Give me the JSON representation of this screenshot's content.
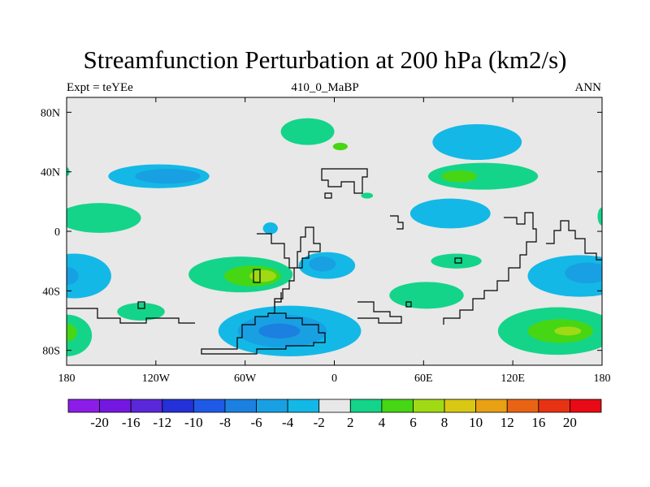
{
  "chart_data": {
    "type": "heatmap",
    "title": "Streamfunction Perturbation at 200 hPa (km2/s)",
    "left_string": "Expt = teYEe",
    "center_string": "410_0_MaBP",
    "right_string": "ANN",
    "x_ticks": [
      {
        "value": -180,
        "label": "180"
      },
      {
        "value": -120,
        "label": "120W"
      },
      {
        "value": -60,
        "label": "60W"
      },
      {
        "value": 0,
        "label": "0"
      },
      {
        "value": 60,
        "label": "60E"
      },
      {
        "value": 120,
        "label": "120E"
      },
      {
        "value": 180,
        "label": "180"
      }
    ],
    "y_ticks": [
      {
        "value": 80,
        "label": "80N"
      },
      {
        "value": 40,
        "label": "40N"
      },
      {
        "value": 0,
        "label": "0"
      },
      {
        "value": -40,
        "label": "40S"
      },
      {
        "value": -80,
        "label": "80S"
      }
    ],
    "xlim": [
      -180,
      180
    ],
    "ylim": [
      -90,
      90
    ],
    "colorbar": {
      "levels": [
        "-20",
        "-16",
        "-12",
        "-10",
        "-8",
        "-6",
        "-4",
        "-2",
        "2",
        "4",
        "6",
        "8",
        "10",
        "12",
        "16",
        "20"
      ],
      "colors": [
        "#8c1de8",
        "#7417e0",
        "#5a28d8",
        "#2430d8",
        "#1f5ae6",
        "#1c80e0",
        "#18a0e2",
        "#14b8e6",
        "#e8e8e8",
        "#14d48a",
        "#46d614",
        "#a0da14",
        "#d8c814",
        "#e8a014",
        "#e86414",
        "#e83214",
        "#e80a14"
      ]
    },
    "fields": [
      {
        "name": "north-pacific-blue",
        "lon": -118,
        "lat": 37,
        "rlon": 34,
        "rlat": 8,
        "value": -4
      },
      {
        "name": "north-pacific-blue-core",
        "lon": -112,
        "lat": 37,
        "rlon": 22,
        "rlat": 5,
        "value": -6
      },
      {
        "name": "north-atlantic-green",
        "lon": -18,
        "lat": 67,
        "rlon": 18,
        "rlat": 9,
        "value": 2
      },
      {
        "name": "north-atlantic-green-core",
        "lon": 4,
        "lat": 57,
        "rlon": 5,
        "rlat": 2.5,
        "value": 4
      },
      {
        "name": "east-asia-blue",
        "lon": 96,
        "lat": 60,
        "rlon": 30,
        "rlat": 12,
        "value": -4
      },
      {
        "name": "asia-green",
        "lon": 100,
        "lat": 37,
        "rlon": 37,
        "rlat": 9,
        "value": 2
      },
      {
        "name": "asia-green-core",
        "lon": 84,
        "lat": 37,
        "rlon": 12,
        "rlat": 4,
        "value": 4
      },
      {
        "name": "central-asia-green-small",
        "lon": 22,
        "lat": 24,
        "rlon": 4,
        "rlat": 2,
        "value": 2
      },
      {
        "name": "pacific-green-west",
        "lon": -158,
        "lat": 9,
        "rlon": 28,
        "rlat": 10,
        "value": 2
      },
      {
        "name": "india-blue",
        "lon": 78,
        "lat": 12,
        "rlon": 27,
        "rlat": 10,
        "value": -4
      },
      {
        "name": "atlantic-blue-small",
        "lon": -43,
        "lat": 2,
        "rlon": 5,
        "rlat": 4,
        "value": -4
      },
      {
        "name": "pacific-edge-green-east",
        "lon": 180,
        "lat": 10,
        "rlon": 3,
        "rlat": 6,
        "value": 2
      },
      {
        "name": "south-america-green",
        "lon": -63,
        "lat": -29,
        "rlon": 35,
        "rlat": 12,
        "value": 2
      },
      {
        "name": "south-america-green-core",
        "lon": -55,
        "lat": -30,
        "rlon": 19,
        "rlat": 7,
        "value": 4
      },
      {
        "name": "south-america-green-max",
        "lon": -48,
        "lat": -30,
        "rlon": 9,
        "rlat": 4,
        "value": 6
      },
      {
        "name": "south-atlantic-blue",
        "lon": -5,
        "lat": -23,
        "rlon": 19,
        "rlat": 9,
        "value": -4
      },
      {
        "name": "south-atlantic-blue-core",
        "lon": -8,
        "lat": -22,
        "rlon": 9,
        "rlat": 5,
        "value": -6
      },
      {
        "name": "indian-ocean-green",
        "lon": 82,
        "lat": -20,
        "rlon": 17,
        "rlat": 5,
        "value": 2
      },
      {
        "name": "south-indian-green",
        "lon": 62,
        "lat": -43,
        "rlon": 25,
        "rlat": 9,
        "value": 2
      },
      {
        "name": "australia-blue",
        "lon": 165,
        "lat": -30,
        "rlon": 35,
        "rlat": 14,
        "value": -4
      },
      {
        "name": "australia-blue-core",
        "lon": 170,
        "lat": -28,
        "rlon": 15,
        "rlat": 7,
        "value": -6
      },
      {
        "name": "west-pacific-blue",
        "lon": -175,
        "lat": -30,
        "rlon": 25,
        "rlat": 15,
        "value": -4
      },
      {
        "name": "west-pacific-blue-core",
        "lon": -180,
        "lat": -30,
        "rlon": 8,
        "rlat": 6,
        "value": -6
      },
      {
        "name": "pacific-green-south",
        "lon": -130,
        "lat": -54,
        "rlon": 16,
        "rlat": 6,
        "value": 2
      },
      {
        "name": "antarctic-blue",
        "lon": -30,
        "lat": -67,
        "rlon": 48,
        "rlat": 17,
        "value": -4
      },
      {
        "name": "antarctic-blue-core",
        "lon": -35,
        "lat": -67,
        "rlon": 30,
        "rlat": 11,
        "value": -6
      },
      {
        "name": "antarctic-blue-max",
        "lon": -37,
        "lat": -67,
        "rlon": 14,
        "rlat": 5,
        "value": -8
      },
      {
        "name": "southeast-pacific-green",
        "lon": 150,
        "lat": -67,
        "rlon": 40,
        "rlat": 16,
        "value": 2
      },
      {
        "name": "southeast-pacific-green-core",
        "lon": 152,
        "lat": -67,
        "rlon": 22,
        "rlat": 8,
        "value": 4
      },
      {
        "name": "southeast-pacific-green-max",
        "lon": 157,
        "lat": -67,
        "rlon": 9,
        "rlat": 3,
        "value": 6
      },
      {
        "name": "southwest-green",
        "lon": -180,
        "lat": -70,
        "rlon": 17,
        "rlat": 14,
        "value": 2
      },
      {
        "name": "southwest-green-core",
        "lon": -180,
        "lat": -68,
        "rlon": 7,
        "rlat": 6,
        "value": 4
      },
      {
        "name": "equator-green-edge-west",
        "lon": -180,
        "lat": 40,
        "rlon": 2,
        "rlat": 3,
        "value": 2
      }
    ]
  }
}
